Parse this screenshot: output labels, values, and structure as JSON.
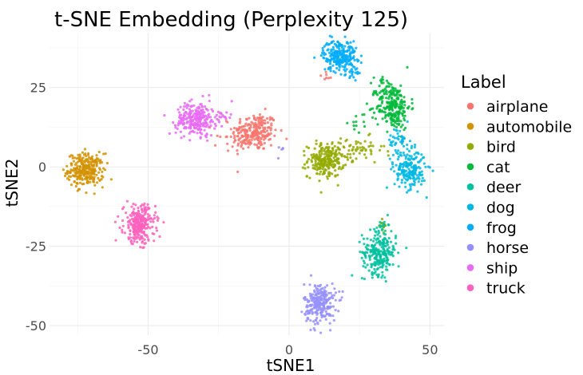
{
  "chart_data": {
    "type": "scatter",
    "title": "t-SNE Embedding (Perplexity 125)",
    "xlabel": "tSNE1",
    "ylabel": "tSNE2",
    "xlim": [
      -85,
      55
    ],
    "ylim": [
      -53,
      42
    ],
    "x_ticks": [
      -50,
      0,
      50
    ],
    "y_ticks": [
      -50,
      -25,
      0,
      25
    ],
    "grid": true,
    "legend": {
      "title": "Label",
      "placement": "right"
    },
    "series": [
      {
        "name": "airplane",
        "color": "#F8766D",
        "clusters": [
          {
            "cx": -12,
            "cy": 11,
            "sx": 4.0,
            "sy": 3.0,
            "n": 230
          },
          {
            "cx": -20,
            "cy": 8,
            "sx": 2.5,
            "sy": 1.5,
            "n": 25
          },
          {
            "cx": 13,
            "cy": 29,
            "sx": 1.0,
            "sy": 1.0,
            "n": 8
          }
        ]
      },
      {
        "name": "automobile",
        "color": "#D39200",
        "clusters": [
          {
            "cx": -72,
            "cy": -1,
            "sx": 3.2,
            "sy": 2.6,
            "n": 280
          }
        ]
      },
      {
        "name": "bird",
        "color": "#93AA00",
        "clusters": [
          {
            "cx": 13,
            "cy": 2,
            "sx": 3.2,
            "sy": 2.6,
            "n": 230
          },
          {
            "cx": 24,
            "cy": 5,
            "sx": 5.0,
            "sy": 2.2,
            "n": 60
          },
          {
            "cx": 33,
            "cy": -18,
            "sx": 1.0,
            "sy": 1.5,
            "n": 12
          }
        ]
      },
      {
        "name": "cat",
        "color": "#00BA38",
        "clusters": [
          {
            "cx": 37,
            "cy": 19,
            "sx": 3.0,
            "sy": 3.6,
            "n": 230
          },
          {
            "cx": 33,
            "cy": 25,
            "sx": 2.5,
            "sy": 2.0,
            "n": 25
          },
          {
            "cx": 26,
            "cy": 14,
            "sx": 2.0,
            "sy": 1.5,
            "n": 12
          }
        ]
      },
      {
        "name": "deer",
        "color": "#00C19F",
        "clusters": [
          {
            "cx": 32,
            "cy": -27,
            "sx": 3.0,
            "sy": 3.4,
            "n": 240
          },
          {
            "cx": 33,
            "cy": -18,
            "sx": 1.2,
            "sy": 2.0,
            "n": 15
          }
        ]
      },
      {
        "name": "dog",
        "color": "#00B9E3",
        "clusters": [
          {
            "cx": 43,
            "cy": -1,
            "sx": 2.8,
            "sy": 3.0,
            "n": 200
          },
          {
            "cx": 39,
            "cy": 8,
            "sx": 2.0,
            "sy": 2.5,
            "n": 45
          }
        ]
      },
      {
        "name": "frog",
        "color": "#00ADFA",
        "clusters": [
          {
            "cx": 18,
            "cy": 35,
            "sx": 3.0,
            "sy": 2.5,
            "n": 240
          },
          {
            "cx": 23,
            "cy": 29,
            "sx": 1.2,
            "sy": 1.5,
            "n": 15
          }
        ]
      },
      {
        "name": "horse",
        "color": "#9590FF",
        "clusters": [
          {
            "cx": 11,
            "cy": -43,
            "sx": 2.8,
            "sy": 3.2,
            "n": 240
          },
          {
            "cx": -3,
            "cy": 5,
            "sx": 1.5,
            "sy": 1.0,
            "n": 5
          }
        ]
      },
      {
        "name": "ship",
        "color": "#E76BF3",
        "clusters": [
          {
            "cx": -33,
            "cy": 15,
            "sx": 3.5,
            "sy": 2.6,
            "n": 250
          },
          {
            "cx": -24,
            "cy": 16,
            "sx": 2.0,
            "sy": 1.0,
            "n": 15
          }
        ]
      },
      {
        "name": "truck",
        "color": "#FF62BC",
        "clusters": [
          {
            "cx": -53,
            "cy": -18,
            "sx": 2.8,
            "sy": 3.0,
            "n": 270
          }
        ]
      }
    ]
  }
}
